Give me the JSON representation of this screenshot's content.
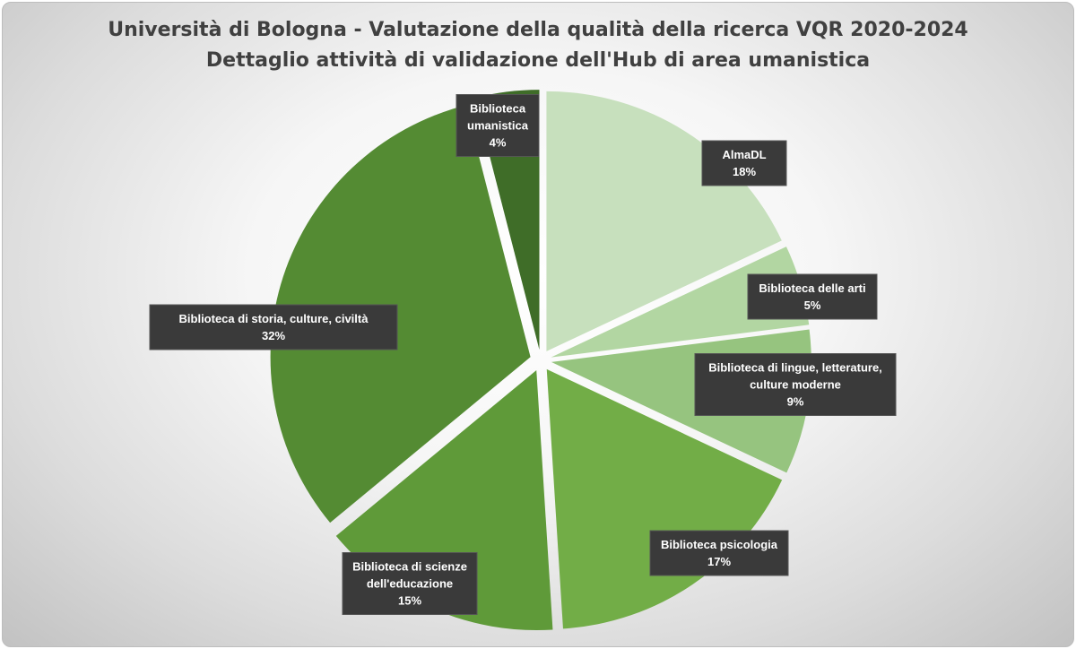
{
  "chart_data": {
    "type": "pie",
    "title": "Università di Bologna - Valutazione della qualità della ricerca VQR 2020-2024",
    "subtitle": "Dettaglio attività di validazione dell'Hub di area umanistica",
    "slices": [
      {
        "name": "AlmaDL",
        "label_lines": [
          "AlmaDL"
        ],
        "value": 18,
        "value_label": "18%",
        "color": "#c7e0bd"
      },
      {
        "name": "Biblioteca delle arti",
        "label_lines": [
          "Biblioteca delle arti"
        ],
        "value": 5,
        "value_label": "5%",
        "color": "#b2d6a2"
      },
      {
        "name": "Biblioteca di lingue, letterature, culture moderne",
        "label_lines": [
          "Biblioteca di lingue, letterature,",
          "culture moderne"
        ],
        "value": 9,
        "value_label": "9%",
        "color": "#96c47f"
      },
      {
        "name": "Biblioteca psicologia",
        "label_lines": [
          "Biblioteca psicologia"
        ],
        "value": 17,
        "value_label": "17%",
        "color": "#72ad47"
      },
      {
        "name": "Biblioteca di scienze dell'educazione",
        "label_lines": [
          "Biblioteca di scienze",
          "dell'educazione"
        ],
        "value": 15,
        "value_label": "15%",
        "color": "#5f9a39"
      },
      {
        "name": "Biblioteca di storia, culture, civiltà",
        "label_lines": [
          "Biblioteca di storia, culture, civiltà"
        ],
        "value": 32,
        "value_label": "32%",
        "color": "#548b33"
      },
      {
        "name": "Biblioteca umanistica",
        "label_lines": [
          "Biblioteca",
          "umanistica"
        ],
        "value": 4,
        "value_label": "4%",
        "color": "#3f6d28"
      }
    ],
    "start_angle_deg": 0,
    "direction": "clockwise",
    "exploded": true,
    "legend": "none",
    "data_labels": "callout boxes"
  }
}
